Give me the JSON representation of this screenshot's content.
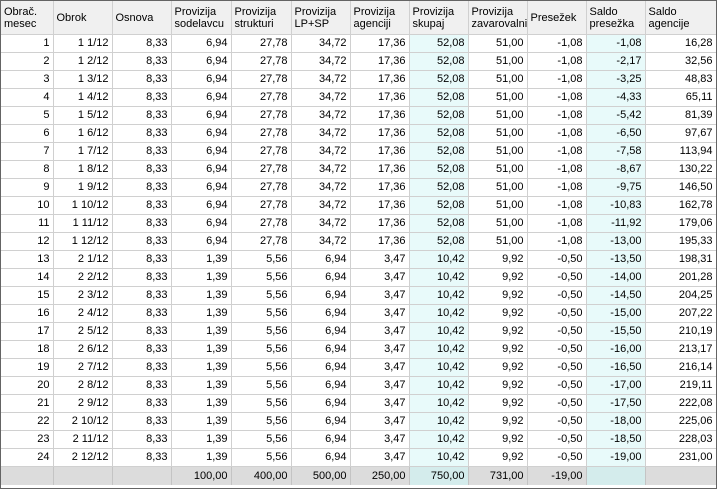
{
  "columns": [
    [
      "Obrač.",
      "mesec"
    ],
    [
      "Obrok",
      ""
    ],
    [
      "Osnova",
      ""
    ],
    [
      "Provizija",
      "sodelavcu"
    ],
    [
      "Provizija",
      "strukturi"
    ],
    [
      "Provizija",
      "LP+SP"
    ],
    [
      "Provizija",
      "agenciji"
    ],
    [
      "Provizija",
      "skupaj"
    ],
    [
      "Provizija",
      "zavarovalnica"
    ],
    [
      "Presežek",
      ""
    ],
    [
      "Saldo",
      "presežka"
    ],
    [
      "Saldo",
      "agencije"
    ]
  ],
  "rows": [
    [
      "1",
      "1 1/12",
      "8,33",
      "6,94",
      "27,78",
      "34,72",
      "17,36",
      "52,08",
      "51,00",
      "-1,08",
      "-1,08",
      "16,28"
    ],
    [
      "2",
      "1 2/12",
      "8,33",
      "6,94",
      "27,78",
      "34,72",
      "17,36",
      "52,08",
      "51,00",
      "-1,08",
      "-2,17",
      "32,56"
    ],
    [
      "3",
      "1 3/12",
      "8,33",
      "6,94",
      "27,78",
      "34,72",
      "17,36",
      "52,08",
      "51,00",
      "-1,08",
      "-3,25",
      "48,83"
    ],
    [
      "4",
      "1 4/12",
      "8,33",
      "6,94",
      "27,78",
      "34,72",
      "17,36",
      "52,08",
      "51,00",
      "-1,08",
      "-4,33",
      "65,11"
    ],
    [
      "5",
      "1 5/12",
      "8,33",
      "6,94",
      "27,78",
      "34,72",
      "17,36",
      "52,08",
      "51,00",
      "-1,08",
      "-5,42",
      "81,39"
    ],
    [
      "6",
      "1 6/12",
      "8,33",
      "6,94",
      "27,78",
      "34,72",
      "17,36",
      "52,08",
      "51,00",
      "-1,08",
      "-6,50",
      "97,67"
    ],
    [
      "7",
      "1 7/12",
      "8,33",
      "6,94",
      "27,78",
      "34,72",
      "17,36",
      "52,08",
      "51,00",
      "-1,08",
      "-7,58",
      "113,94"
    ],
    [
      "8",
      "1 8/12",
      "8,33",
      "6,94",
      "27,78",
      "34,72",
      "17,36",
      "52,08",
      "51,00",
      "-1,08",
      "-8,67",
      "130,22"
    ],
    [
      "9",
      "1 9/12",
      "8,33",
      "6,94",
      "27,78",
      "34,72",
      "17,36",
      "52,08",
      "51,00",
      "-1,08",
      "-9,75",
      "146,50"
    ],
    [
      "10",
      "1 10/12",
      "8,33",
      "6,94",
      "27,78",
      "34,72",
      "17,36",
      "52,08",
      "51,00",
      "-1,08",
      "-10,83",
      "162,78"
    ],
    [
      "11",
      "1 11/12",
      "8,33",
      "6,94",
      "27,78",
      "34,72",
      "17,36",
      "52,08",
      "51,00",
      "-1,08",
      "-11,92",
      "179,06"
    ],
    [
      "12",
      "1 12/12",
      "8,33",
      "6,94",
      "27,78",
      "34,72",
      "17,36",
      "52,08",
      "51,00",
      "-1,08",
      "-13,00",
      "195,33"
    ],
    [
      "13",
      "2 1/12",
      "8,33",
      "1,39",
      "5,56",
      "6,94",
      "3,47",
      "10,42",
      "9,92",
      "-0,50",
      "-13,50",
      "198,31"
    ],
    [
      "14",
      "2 2/12",
      "8,33",
      "1,39",
      "5,56",
      "6,94",
      "3,47",
      "10,42",
      "9,92",
      "-0,50",
      "-14,00",
      "201,28"
    ],
    [
      "15",
      "2 3/12",
      "8,33",
      "1,39",
      "5,56",
      "6,94",
      "3,47",
      "10,42",
      "9,92",
      "-0,50",
      "-14,50",
      "204,25"
    ],
    [
      "16",
      "2 4/12",
      "8,33",
      "1,39",
      "5,56",
      "6,94",
      "3,47",
      "10,42",
      "9,92",
      "-0,50",
      "-15,00",
      "207,22"
    ],
    [
      "17",
      "2 5/12",
      "8,33",
      "1,39",
      "5,56",
      "6,94",
      "3,47",
      "10,42",
      "9,92",
      "-0,50",
      "-15,50",
      "210,19"
    ],
    [
      "18",
      "2 6/12",
      "8,33",
      "1,39",
      "5,56",
      "6,94",
      "3,47",
      "10,42",
      "9,92",
      "-0,50",
      "-16,00",
      "213,17"
    ],
    [
      "19",
      "2 7/12",
      "8,33",
      "1,39",
      "5,56",
      "6,94",
      "3,47",
      "10,42",
      "9,92",
      "-0,50",
      "-16,50",
      "216,14"
    ],
    [
      "20",
      "2 8/12",
      "8,33",
      "1,39",
      "5,56",
      "6,94",
      "3,47",
      "10,42",
      "9,92",
      "-0,50",
      "-17,00",
      "219,11"
    ],
    [
      "21",
      "2 9/12",
      "8,33",
      "1,39",
      "5,56",
      "6,94",
      "3,47",
      "10,42",
      "9,92",
      "-0,50",
      "-17,50",
      "222,08"
    ],
    [
      "22",
      "2 10/12",
      "8,33",
      "1,39",
      "5,56",
      "6,94",
      "3,47",
      "10,42",
      "9,92",
      "-0,50",
      "-18,00",
      "225,06"
    ],
    [
      "23",
      "2 11/12",
      "8,33",
      "1,39",
      "5,56",
      "6,94",
      "3,47",
      "10,42",
      "9,92",
      "-0,50",
      "-18,50",
      "228,03"
    ],
    [
      "24",
      "2 12/12",
      "8,33",
      "1,39",
      "5,56",
      "6,94",
      "3,47",
      "10,42",
      "9,92",
      "-0,50",
      "-19,00",
      "231,00"
    ]
  ],
  "totals": [
    "",
    "",
    "",
    "100,00",
    "400,00",
    "500,00",
    "250,00",
    "750,00",
    "731,00",
    "-19,00",
    "",
    ""
  ],
  "highlight_columns": [
    7,
    10
  ],
  "colors": {
    "highlight": "#e8fafa",
    "header_bg": "#f0f0f0",
    "totals_bg": "#dcdcdc"
  }
}
